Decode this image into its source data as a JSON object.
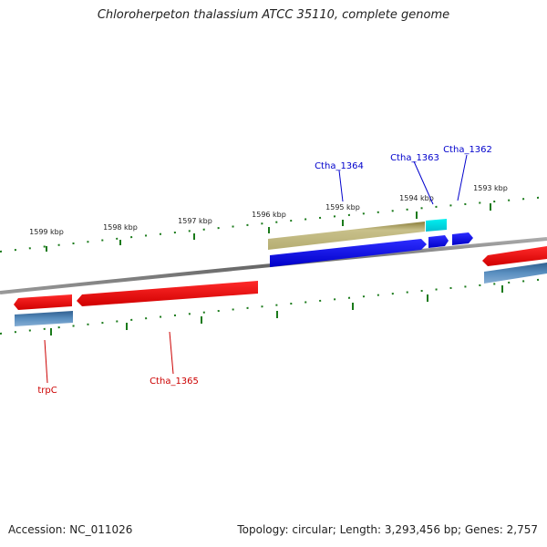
{
  "title": "Chloroherpeton thalassium ATCC 35110, complete genome",
  "footer": {
    "accession": "Accession: NC_011026",
    "topology": "Topology: circular; Length: 3,293,456 bp; Genes: 2,757"
  },
  "ruler_labels": [
    "1599 kbp",
    "1598 kbp",
    "1597 kbp",
    "1596 kbp",
    "1595 kbp",
    "1594 kbp",
    "1593 kbp"
  ],
  "gene_labels": {
    "top": [
      "Ctha_1364",
      "Ctha_1363",
      "Ctha_1362"
    ],
    "bottom": [
      "trpC",
      "Ctha_1365"
    ]
  },
  "colors": {
    "forward_gene": "#0000ee",
    "reverse_gene": "#ee0000",
    "rna_gene": "#bdb56f",
    "cyan_gene": "#00e5ee",
    "steel_gene": "#4a7fb0",
    "tick": "#1a7a1a",
    "backbone": "#888888"
  }
}
